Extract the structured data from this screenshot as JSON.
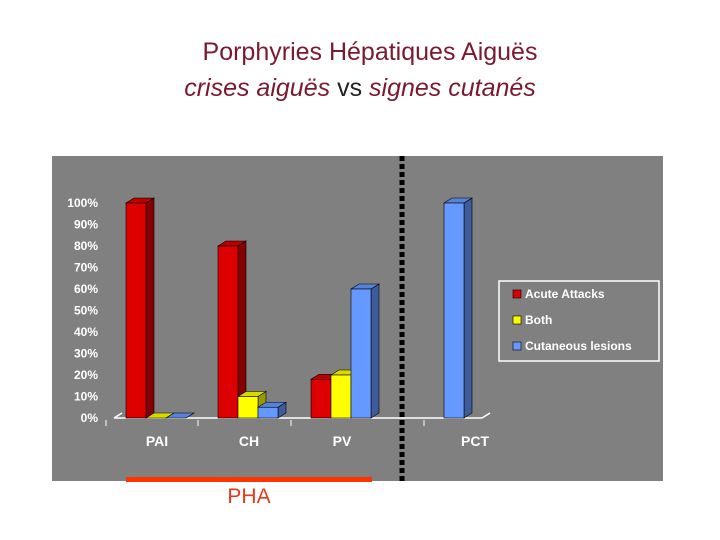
{
  "title": {
    "line1": "Porphyries Hépatiques Aiguës",
    "line2_part1": "crises aiguës",
    "line2_vs": "vs",
    "line2_part2": "signes cutanés"
  },
  "group_label": "PHA",
  "chart_data": {
    "type": "bar",
    "categories": [
      "PAI",
      "CH",
      "PV",
      "PCT"
    ],
    "series": [
      {
        "name": "Acute Attacks",
        "color": "#dd0000",
        "values": [
          100,
          80,
          18,
          0
        ]
      },
      {
        "name": "Both",
        "color": "#ffff00",
        "values": [
          0,
          10,
          20,
          0
        ]
      },
      {
        "name": "Cutaneous lesions",
        "color": "#6699ff",
        "values": [
          0,
          5,
          60,
          100
        ]
      }
    ],
    "y_ticks": [
      "0%",
      "10%",
      "20%",
      "30%",
      "40%",
      "50%",
      "60%",
      "70%",
      "80%",
      "90%",
      "100%"
    ],
    "ylim": [
      0,
      100
    ],
    "legend_position": "right",
    "grid": false
  }
}
